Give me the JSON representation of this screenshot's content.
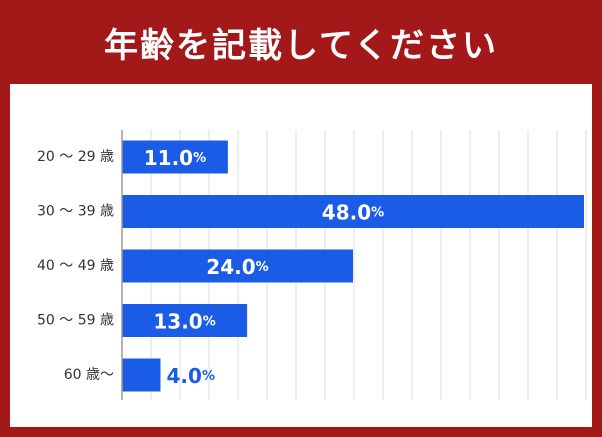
{
  "title": "年齢を記載してください",
  "colors": {
    "header_background": "#a31818",
    "panel_background": "#ffffff",
    "bar": "#1a5ce5",
    "bar_label_inside": "#ffffff",
    "bar_label_outside": "#1a5ce5",
    "category_text": "#333333",
    "grid": "#dddddd"
  },
  "chart_data": {
    "type": "bar",
    "orientation": "horizontal",
    "categories": [
      "20 ～ 29 歳",
      "30 ～ 39 歳",
      "40 ～ 49 歳",
      "50 ～ 59 歳",
      "60 歳～"
    ],
    "values": [
      11.0,
      48.0,
      24.0,
      13.0,
      4.0
    ],
    "value_labels": [
      "11.0",
      "48.0",
      "24.0",
      "13.0",
      "4.0"
    ],
    "value_suffix": "%",
    "xlim": [
      0,
      48
    ],
    "grid": true,
    "legend": "none"
  }
}
